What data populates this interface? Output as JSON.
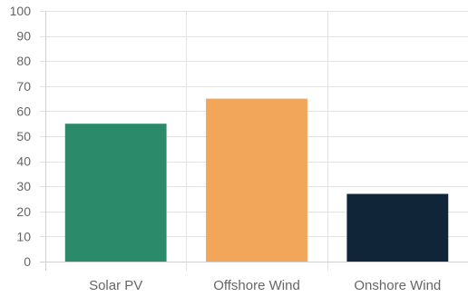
{
  "chart_data": {
    "type": "bar",
    "categories": [
      "Solar PV",
      "Offshore Wind",
      "Onshore Wind"
    ],
    "values": [
      55,
      65,
      27
    ],
    "colors": [
      "#2a8a6a",
      "#f2a65a",
      "#112539"
    ],
    "yticks": [
      "0",
      "10",
      "20",
      "30",
      "40",
      "50",
      "60",
      "70",
      "80",
      "90",
      "100"
    ],
    "ylim": [
      0,
      100
    ],
    "grid": true,
    "legend": "none"
  }
}
